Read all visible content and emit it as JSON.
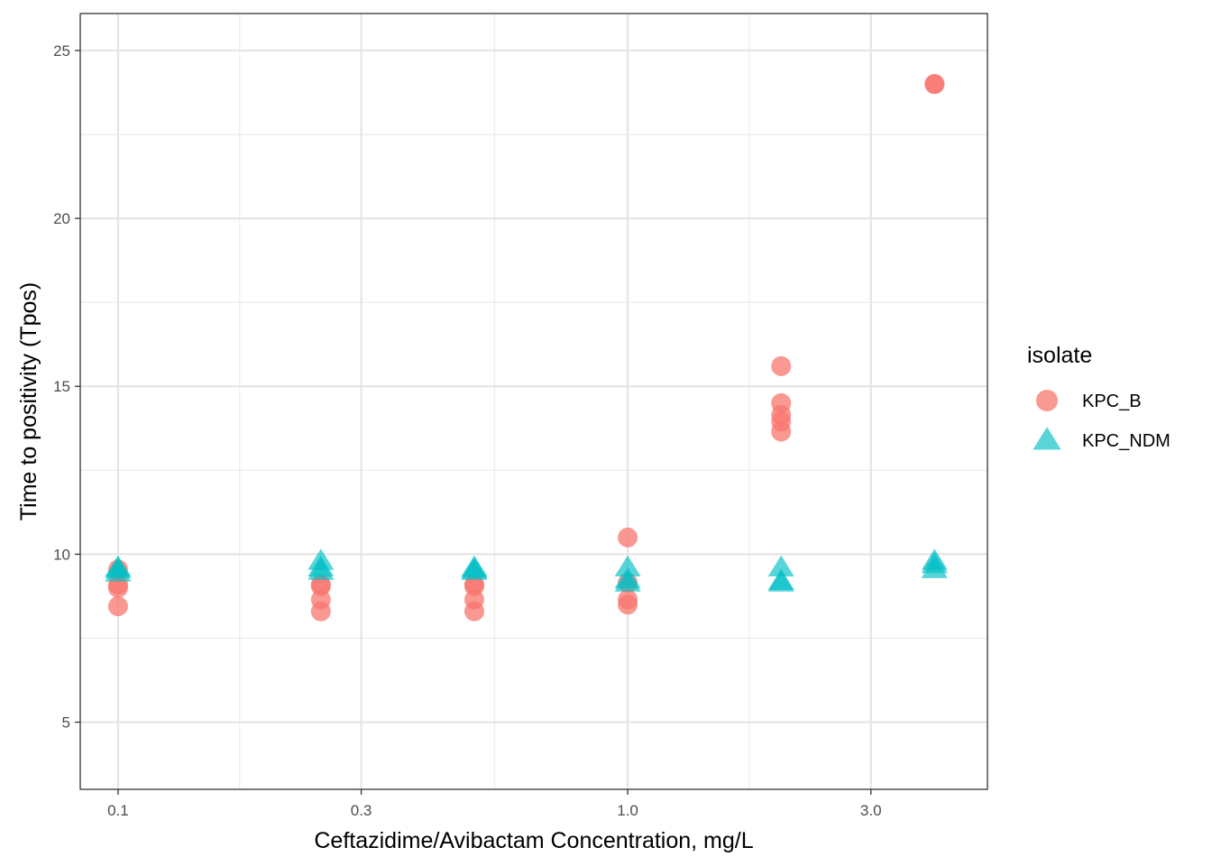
{
  "chart_data": {
    "type": "scatter",
    "xlabel": "Ceftazidime/Avibactam Concentration, mg/L",
    "ylabel": "Time to positivity (Tpos)",
    "x_scale": "log10",
    "xlim": [
      0.0843,
      5.08
    ],
    "ylim": [
      3,
      26.1
    ],
    "x_ticks": [
      0.1,
      0.3,
      1.0,
      3.0
    ],
    "x_tick_labels": [
      "0.1",
      "0.3",
      "1.0",
      "3.0"
    ],
    "y_ticks": [
      5,
      10,
      15,
      20,
      25
    ],
    "y_tick_labels": [
      "5",
      "10",
      "15",
      "20",
      "25"
    ],
    "grid": true,
    "legend": {
      "title": "isolate",
      "position": "right"
    },
    "series": [
      {
        "name": "KPC_B",
        "shape": "circle",
        "color": "#F8766D",
        "points": [
          [
            0.1,
            9.55
          ],
          [
            0.1,
            9.1
          ],
          [
            0.1,
            9.0
          ],
          [
            0.1,
            8.45
          ],
          [
            0.25,
            9.1
          ],
          [
            0.25,
            9.05
          ],
          [
            0.25,
            8.65
          ],
          [
            0.25,
            8.3
          ],
          [
            0.5,
            9.1
          ],
          [
            0.5,
            9.05
          ],
          [
            0.5,
            8.65
          ],
          [
            0.5,
            8.3
          ],
          [
            1.0,
            10.5
          ],
          [
            1.0,
            9.15
          ],
          [
            1.0,
            8.65
          ],
          [
            1.0,
            8.5
          ],
          [
            2.0,
            15.6
          ],
          [
            2.0,
            14.5
          ],
          [
            2.0,
            14.15
          ],
          [
            2.0,
            13.95
          ],
          [
            2.0,
            13.65
          ],
          [
            4.0,
            24.0
          ],
          [
            4.0,
            24.0
          ]
        ]
      },
      {
        "name": "KPC_NDM",
        "shape": "triangle",
        "color": "#00BFC4",
        "points": [
          [
            0.1,
            9.6
          ],
          [
            0.1,
            9.55
          ],
          [
            0.1,
            9.45
          ],
          [
            0.25,
            9.8
          ],
          [
            0.25,
            9.6
          ],
          [
            0.25,
            9.5
          ],
          [
            0.5,
            9.6
          ],
          [
            0.5,
            9.55
          ],
          [
            0.5,
            9.5
          ],
          [
            1.0,
            9.6
          ],
          [
            1.0,
            9.25
          ],
          [
            1.0,
            9.15
          ],
          [
            2.0,
            9.6
          ],
          [
            2.0,
            9.2
          ],
          [
            2.0,
            9.15
          ],
          [
            4.0,
            9.8
          ],
          [
            4.0,
            9.7
          ],
          [
            4.0,
            9.55
          ]
        ]
      }
    ]
  }
}
